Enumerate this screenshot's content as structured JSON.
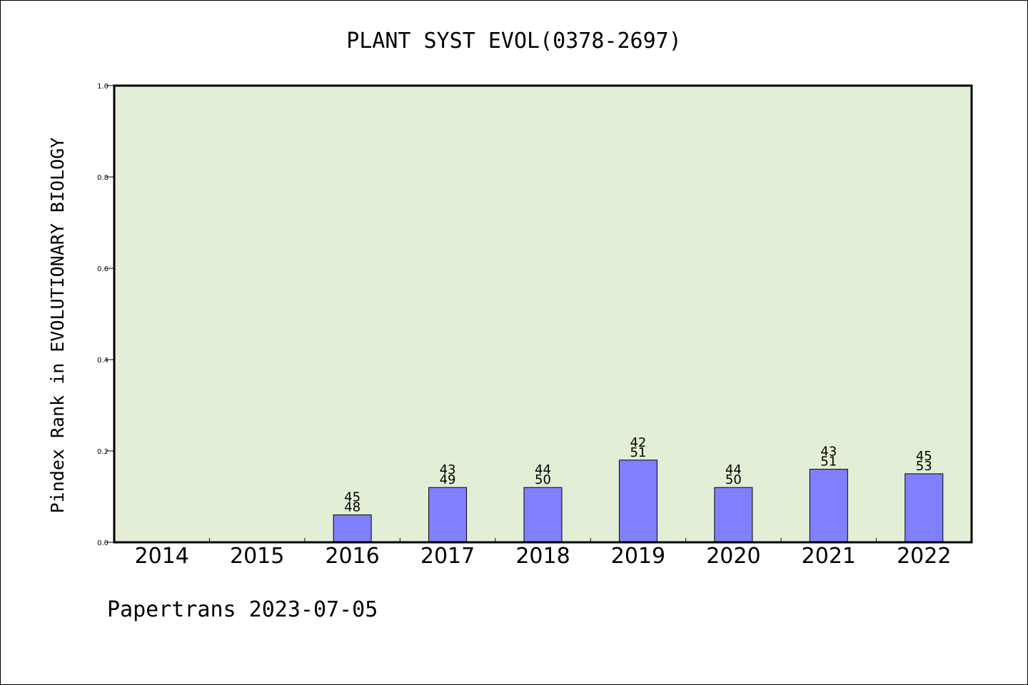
{
  "chart_data": {
    "type": "bar",
    "title": "PLANT SYST EVOL(0378-2697)",
    "xlabel": "",
    "ylabel": "Pindex Rank in EVOLUTIONARY BIOLOGY",
    "categories": [
      "2014",
      "2015",
      "2016",
      "2017",
      "2018",
      "2019",
      "2020",
      "2021",
      "2022"
    ],
    "values": [
      null,
      null,
      0.06,
      0.12,
      0.12,
      0.18,
      0.12,
      0.16,
      0.15
    ],
    "bar_labels_top": [
      "",
      "",
      "45",
      "43",
      "44",
      "42",
      "44",
      "43",
      "45"
    ],
    "bar_labels_bottom": [
      "",
      "",
      "48",
      "49",
      "50",
      "51",
      "50",
      "51",
      "53"
    ],
    "ylim": [
      0.0,
      1.0
    ],
    "yticks": [
      0.0,
      0.2,
      0.4,
      0.6,
      0.8,
      1.0
    ],
    "ytick_labels": [
      "0.0",
      "0.2",
      "0.4",
      "0.6",
      "0.8",
      "1.0"
    ],
    "grid": false,
    "colors": {
      "plot_background": "#e2efd6",
      "bar_fill": "#8080ff",
      "bar_stroke": "#000000",
      "axis": "#000000"
    }
  },
  "footer": {
    "text": "Papertrans 2023-07-05"
  }
}
